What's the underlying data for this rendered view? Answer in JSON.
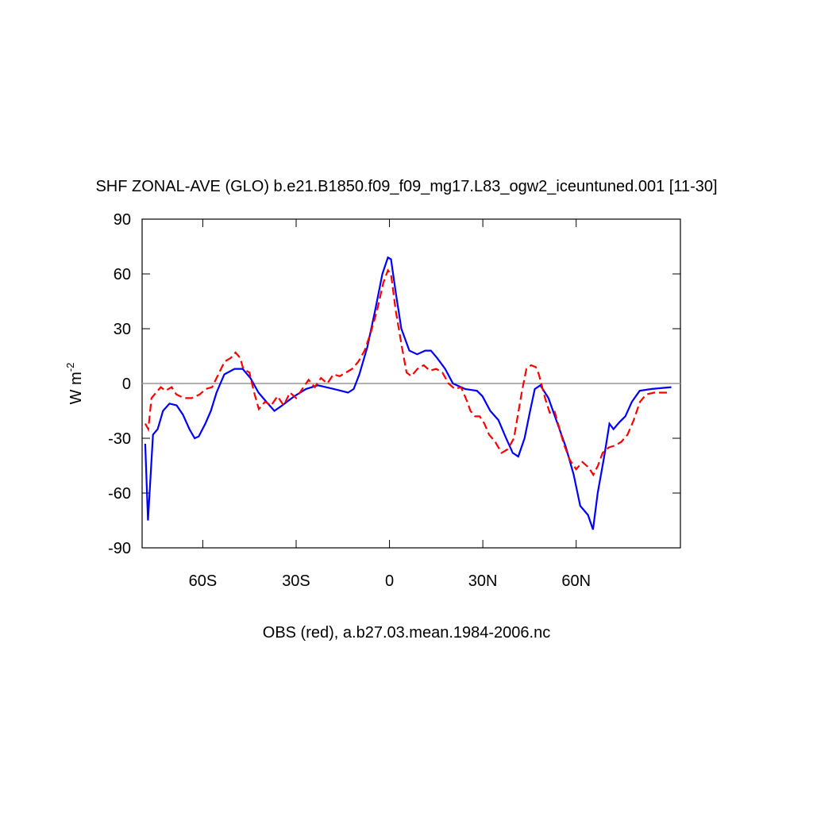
{
  "chart_data": {
    "type": "line",
    "title": "SHF ZONAL-AVE (GLO) b.e21.B1850.f09_f09_mg17.L83_ogw2_iceuntuned.001 [11-30]",
    "ylabel": "W m",
    "ylabel_superscript": "-2",
    "xlabel": "OBS (red), a.b27.03.mean.1984-2006.nc",
    "xlim": [
      -79.5,
      93.5
    ],
    "ylim": [
      -90,
      90
    ],
    "xticks": [
      {
        "value": -60,
        "label": "60S"
      },
      {
        "value": -30,
        "label": "30S"
      },
      0,
      {
        "value": 30,
        "label": "30N"
      },
      {
        "value": 60,
        "label": "60N"
      }
    ],
    "yticks": [
      -90,
      -60,
      -30,
      0,
      30,
      60,
      90
    ],
    "zero_line": true,
    "series": [
      {
        "color": "#0000ff",
        "dash": false,
        "x": [
          -78.5,
          -77.6,
          -76,
          -74.5,
          -72.8,
          -70.7,
          -68.4,
          -66.4,
          -64.3,
          -62.6,
          -61.3,
          -59.2,
          -57.4,
          -55.6,
          -53.1,
          -49.8,
          -47.2,
          -44.7,
          -42.1,
          -39.6,
          -37,
          -34.5,
          -30.6,
          -26.8,
          -23,
          -17.9,
          -13.3,
          -11.5,
          -9.7,
          -7.1,
          -4.6,
          -2.3,
          -0.5,
          0.5,
          2,
          3.8,
          6.4,
          8.9,
          11.5,
          13.3,
          15.3,
          17.9,
          20.4,
          24.3,
          28.1,
          29.9,
          32.4,
          35,
          37.5,
          39.6,
          41.4,
          43.4,
          45.2,
          46.7,
          48.5,
          51.1,
          53.6,
          56.7,
          59.2,
          61.3,
          63.8,
          65.4,
          66.9,
          69,
          70.7,
          72,
          74,
          75.8,
          77.9,
          80.4,
          84.3,
          90.6
        ],
        "values": [
          -33,
          -75,
          -28,
          -25,
          -15,
          -11,
          -12,
          -17,
          -25,
          -30,
          -29,
          -22,
          -15,
          -5,
          5,
          8,
          8,
          3,
          -5,
          -10,
          -15,
          -12,
          -7,
          -3,
          -1,
          -3,
          -5,
          -3,
          5,
          20,
          40,
          60,
          69,
          68,
          50,
          30,
          18,
          16,
          18,
          18,
          14,
          8,
          0,
          -3,
          -4,
          -7,
          -15,
          -20,
          -30,
          -38,
          -40,
          -30,
          -15,
          -3,
          -1,
          -8,
          -20,
          -35,
          -50,
          -67,
          -72,
          -80,
          -60,
          -40,
          -22,
          -25,
          -21,
          -18,
          -10,
          -4,
          -3,
          -2
        ]
      },
      {
        "color": "#ff0000",
        "dash": true,
        "x": [
          -78.5,
          -77.5,
          -76.5,
          -75,
          -73.5,
          -72,
          -70,
          -68.5,
          -66,
          -63.5,
          -61,
          -59,
          -57,
          -55,
          -53,
          -51,
          -49.5,
          -48,
          -47,
          -45,
          -43.5,
          -42,
          -40,
          -38,
          -36,
          -34,
          -32,
          -30,
          -28,
          -26,
          -24,
          -22,
          -20,
          -18,
          -16,
          -14,
          -12,
          -10,
          -8,
          -6,
          -4,
          -2,
          -0.5,
          0.5,
          2,
          4,
          5.5,
          7,
          9,
          11,
          13,
          15,
          17,
          19,
          21,
          23,
          25,
          26,
          27.5,
          29,
          30.5,
          32,
          34,
          36,
          38,
          40,
          41,
          42.5,
          44,
          45.5,
          47,
          48,
          50,
          51.5,
          53,
          54.5,
          56,
          58,
          60,
          62,
          64,
          65.5,
          67,
          68.5,
          70.5,
          72.5,
          74.5,
          76.5,
          78.5,
          80.5,
          82.5,
          85,
          90
        ],
        "values": [
          -22,
          -25,
          -8,
          -5,
          -2,
          -4,
          -2,
          -6,
          -8,
          -8,
          -6,
          -3,
          -2,
          5,
          12,
          14,
          17,
          14,
          8,
          6,
          -5,
          -14,
          -10,
          -12,
          -7,
          -12,
          -5,
          -8,
          -3,
          2,
          -2,
          3,
          0,
          5,
          4,
          6,
          8,
          12,
          18,
          28,
          40,
          55,
          62,
          60,
          40,
          20,
          6,
          4,
          8,
          10,
          7,
          8,
          6,
          0,
          -3,
          -2,
          -10,
          -15,
          -18,
          -18,
          -22,
          -28,
          -32,
          -38,
          -36,
          -30,
          -20,
          -5,
          8,
          10,
          9,
          5,
          -8,
          -16,
          -15,
          -24,
          -33,
          -42,
          -47,
          -43,
          -46,
          -50,
          -45,
          -38,
          -35,
          -34,
          -32,
          -28,
          -20,
          -10,
          -6,
          -5,
          -5
        ]
      }
    ]
  }
}
